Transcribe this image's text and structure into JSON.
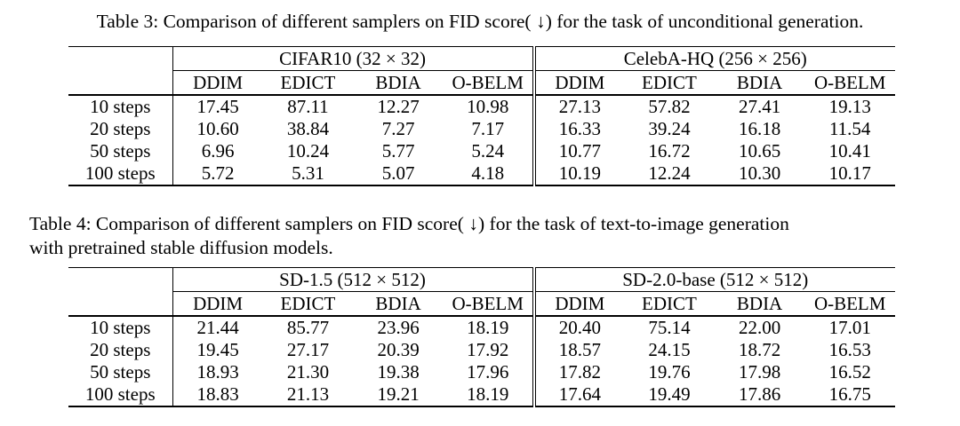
{
  "tables": [
    {
      "caption_lines": [
        "Table 3: Comparison of different samplers on FID score( ↓) for the task of unconditional generation."
      ],
      "groups": [
        "CIFAR10 (32 × 32)",
        "CelebA-HQ (256 × 256)"
      ],
      "columns": [
        "DDIM",
        "EDICT",
        "BDIA",
        "O-BELM",
        "DDIM",
        "EDICT",
        "BDIA",
        "O-BELM"
      ],
      "rows": [
        {
          "label": "10 steps",
          "cells": [
            {
              "v": "17.45"
            },
            {
              "v": "87.11"
            },
            {
              "v": "12.27"
            },
            {
              "v": "10.98",
              "b": true
            },
            {
              "v": "27.13"
            },
            {
              "v": "57.82"
            },
            {
              "v": "27.41"
            },
            {
              "v": "19.13",
              "b": true
            }
          ]
        },
        {
          "label": "20 steps",
          "cells": [
            {
              "v": "10.60"
            },
            {
              "v": "38.84"
            },
            {
              "v": "7.27",
              "b": true
            },
            {
              "v": "7.17",
              "b": true
            },
            {
              "v": "16.33"
            },
            {
              "v": "39.24"
            },
            {
              "v": "16.18"
            },
            {
              "v": "11.54",
              "b": true
            }
          ]
        },
        {
          "label": "50 steps",
          "cells": [
            {
              "v": "6.96"
            },
            {
              "v": "10.24"
            },
            {
              "v": "5.77"
            },
            {
              "v": "5.24",
              "b": true
            },
            {
              "v": "10.77",
              "b": true
            },
            {
              "v": "16.72"
            },
            {
              "v": "10.65",
              "b": true
            },
            {
              "v": "10.41",
              "b": true
            }
          ]
        },
        {
          "label": "100 steps",
          "cells": [
            {
              "v": "5.72"
            },
            {
              "v": "5.31"
            },
            {
              "v": "5.07"
            },
            {
              "v": "4.18",
              "b": true
            },
            {
              "v": "10.19",
              "b": true
            },
            {
              "v": "12.24"
            },
            {
              "v": "10.30",
              "b": true
            },
            {
              "v": "10.17",
              "b": true
            }
          ]
        }
      ]
    },
    {
      "caption_lines": [
        "Table 4: Comparison of different samplers on FID score( ↓) for the task of text-to-image generation",
        "with pretrained stable diffusion models."
      ],
      "groups": [
        "SD-1.5 (512 × 512)",
        "SD-2.0-base (512 × 512)"
      ],
      "columns": [
        "DDIM",
        "EDICT",
        "BDIA",
        "O-BELM",
        "DDIM",
        "EDICT",
        "BDIA",
        "O-BELM"
      ],
      "rows": [
        {
          "label": "10 steps",
          "cells": [
            {
              "v": "21.44"
            },
            {
              "v": "85.77"
            },
            {
              "v": "23.96"
            },
            {
              "v": "18.19",
              "b": true
            },
            {
              "v": "20.40"
            },
            {
              "v": "75.14"
            },
            {
              "v": "22.00"
            },
            {
              "v": "17.01",
              "b": true
            }
          ]
        },
        {
          "label": "20 steps",
          "cells": [
            {
              "v": "19.45"
            },
            {
              "v": "27.17"
            },
            {
              "v": "20.39"
            },
            {
              "v": "17.92",
              "b": true
            },
            {
              "v": "18.57"
            },
            {
              "v": "24.15"
            },
            {
              "v": "18.72"
            },
            {
              "v": "16.53",
              "b": true
            }
          ]
        },
        {
          "label": "50 steps",
          "cells": [
            {
              "v": "18.93"
            },
            {
              "v": "21.30"
            },
            {
              "v": "19.38"
            },
            {
              "v": "17.96",
              "b": true
            },
            {
              "v": "17.82"
            },
            {
              "v": "19.76"
            },
            {
              "v": "17.98"
            },
            {
              "v": "16.52",
              "b": true
            }
          ]
        },
        {
          "label": "100 steps",
          "cells": [
            {
              "v": "18.83"
            },
            {
              "v": "21.13"
            },
            {
              "v": "19.21"
            },
            {
              "v": "18.19",
              "b": true
            },
            {
              "v": "17.64"
            },
            {
              "v": "19.49"
            },
            {
              "v": "17.86"
            },
            {
              "v": "16.75",
              "b": true
            }
          ]
        }
      ]
    }
  ]
}
